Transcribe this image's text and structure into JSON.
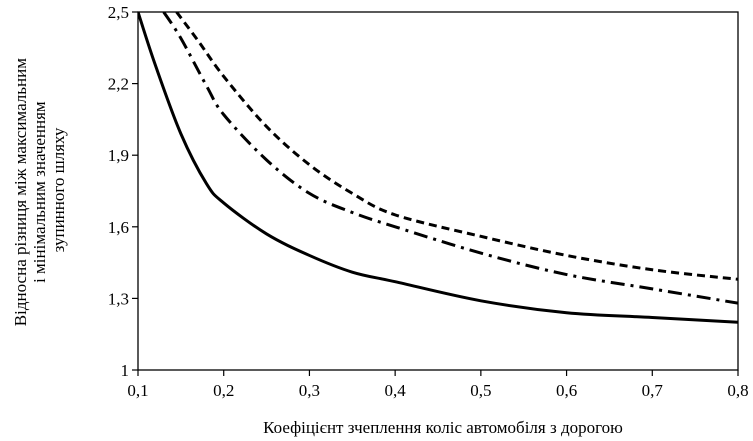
{
  "chart_data": {
    "type": "line",
    "xlabel": "Коефіцієнт зчеплення коліс автомобіля з дорогою",
    "ylabel_lines": [
      "Відносна різниця між максимальним",
      "і мінімальним значенням",
      "зупинного шляху"
    ],
    "xlim": [
      0.1,
      0.8
    ],
    "ylim": [
      1,
      2.5
    ],
    "x_ticks": [
      0.1,
      0.2,
      0.3,
      0.4,
      0.5,
      0.6,
      0.7,
      0.8
    ],
    "x_tick_labels": [
      "0,1",
      "0,2",
      "0,3",
      "0,4",
      "0,5",
      "0,6",
      "0,7",
      "0,8"
    ],
    "y_ticks": [
      1,
      1.3,
      1.6,
      1.9,
      2.2,
      2.5
    ],
    "y_tick_labels": [
      "1",
      "1,3",
      "1,6",
      "1,9",
      "2,2",
      "2,5"
    ],
    "grid": false,
    "legend": "none",
    "series": [
      {
        "style": "solid",
        "x": [
          0.1,
          0.12,
          0.15,
          0.18,
          0.2,
          0.25,
          0.3,
          0.35,
          0.4,
          0.5,
          0.6,
          0.7,
          0.8
        ],
        "y": [
          2.5,
          2.28,
          1.99,
          1.78,
          1.7,
          1.57,
          1.48,
          1.41,
          1.37,
          1.29,
          1.24,
          1.22,
          1.2
        ]
      },
      {
        "style": "dash-dot",
        "x": [
          0.13,
          0.15,
          0.18,
          0.2,
          0.25,
          0.3,
          0.35,
          0.4,
          0.5,
          0.6,
          0.7,
          0.8
        ],
        "y": [
          2.5,
          2.39,
          2.19,
          2.07,
          1.88,
          1.74,
          1.66,
          1.6,
          1.49,
          1.4,
          1.34,
          1.28
        ]
      },
      {
        "style": "dashed",
        "x": [
          0.145,
          0.17,
          0.2,
          0.25,
          0.3,
          0.35,
          0.4,
          0.5,
          0.6,
          0.7,
          0.8
        ],
        "y": [
          2.5,
          2.38,
          2.23,
          2.02,
          1.86,
          1.74,
          1.65,
          1.56,
          1.48,
          1.42,
          1.38
        ]
      }
    ]
  }
}
